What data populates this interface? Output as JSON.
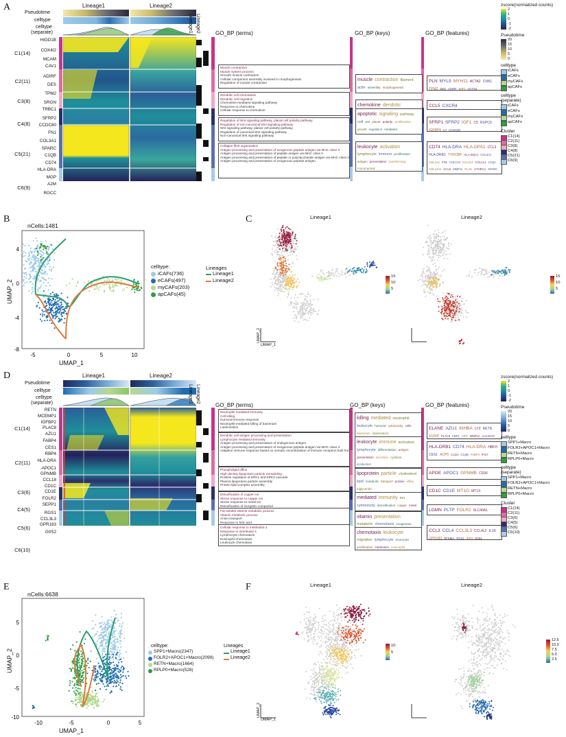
{
  "panels": {
    "A": "A",
    "B": "B",
    "C": "C",
    "D": "D",
    "E": "E",
    "F": "F"
  },
  "colors": {
    "yellow": "#f5e71e",
    "teal": "#1f8f9a",
    "navy": "#25205a",
    "c1": "#c8338a",
    "c2": "#e06aa0",
    "c3": "#f4a6c6",
    "c4": "#2b2f6b",
    "c5": "#5b6fb0",
    "c6": "#a8cbe6",
    "lin1": "#2a9d70",
    "lin2": "#e07a3a",
    "icaf": "#9ecae8",
    "ecaf": "#1f6eb0",
    "mycaf": "#b5d990",
    "apcaf": "#2e9e40"
  },
  "A": {
    "row_labels": [
      "Pseudotime",
      "celltype",
      "celltype",
      "(separate)"
    ],
    "lineage1": "Lineage1",
    "lineage2": "Lineage2",
    "vlin1": "Lineage1",
    "vlin2": "Lineage2",
    "genes": [
      "HIGD1B",
      "COX4I2",
      "MCAM",
      "CAV1",
      "ADIRF",
      "DES",
      "TPM2",
      "SRGN",
      "TRBC1",
      "SFRP2",
      "CCDC80",
      "FN1",
      "COL3A1",
      "SPARC",
      "C1QB",
      "CD74",
      "HLA-DRA",
      "MGP",
      "A2M",
      "RGCC"
    ],
    "clusters": [
      "C1(14)",
      "C2(11)",
      "C3(8)",
      "C4(8)",
      "C5(21)",
      "C6(9)"
    ],
    "hdr_terms": "GO_BP (terms)",
    "hdr_keys": "GO_BP (keys)",
    "hdr_feat": "GO_BP (features)",
    "terms": [
      [
        "Muscle contraction",
        "Muscle system process",
        "Smooth muscle contraction",
        "Cellular component assembly involved in morphogenesis",
        "Regulation of muscle contraction"
      ],
      [
        "Dendritic cell chemotaxis",
        "Dendritic cell migration",
        "Chemokine-mediated signaling pathway",
        "Response to chemokine",
        "Cellular response to chemokine"
      ],
      [
        "Regulation of Wnt signaling pathway, planar cell polarity pathway",
        "Regulation of non-canonical Wnt signaling pathway",
        "Wnt signaling pathway, planar cell polarity pathway",
        "Regulation of canonical Wnt signaling pathway",
        "Non-canonical Wnt signaling pathway"
      ],
      [
        "Collagen fibril organization",
        "Antigen processing and presentation of exogenous peptide antigen via MHC class II",
        "Antigen processing and presentation of peptide antigen via MHC class II",
        "Antigen processing and presentation of peptide or polysaccharide antigen via MHC class II",
        "Antigen processing and presentation of exogenous peptide antigen"
      ]
    ],
    "keys": [
      [
        "muscle",
        "contraction",
        "filament",
        "actin",
        "assembly",
        "morphogenesis",
        "differentiation"
      ],
      [
        "chemokine",
        "dendritic"
      ],
      [
        "apoptotic",
        "signaling",
        "pathway",
        "cell",
        "wnt",
        "planar",
        "polarity",
        "proliferation",
        "growth",
        "regulation",
        "mediated"
      ],
      [
        "leukocyte",
        "activation",
        "lymphocyte",
        "immune",
        "proliferation",
        "antigen",
        "presentation",
        "transforming",
        "mononuclear"
      ]
    ],
    "features": [
      [
        "PLN",
        "MYL9",
        "MYH11",
        "ACTA2",
        "CNN1",
        "TPM2",
        "DES",
        "ADIRF",
        "WIF1",
        "ACTG2"
      ],
      [
        "CCL5",
        "CXCR4"
      ],
      [
        "SFRP1",
        "SFRP2",
        "IGF1",
        "C5",
        "RSPO3",
        "IGFBP4",
        "C7",
        "CCDC80"
      ],
      [
        "CD74",
        "HLA-DRA",
        "HLA-DPA1",
        "CCL3",
        "HLA-DRB1",
        "TYROBP",
        "HLA-DQA1",
        "COL3A1",
        "COL1A1",
        "FN1",
        "COL1A2",
        "CCL4L2",
        "COL1A1",
        "C1QA",
        "COL12A1",
        "CCL5",
        "MMP11",
        "PLAU",
        "CTHRC1",
        "SPARC"
      ]
    ],
    "legend": {
      "zscore": "zscore(normalized counts)",
      "zticks": [
        "2",
        "1",
        "0",
        "-1",
        "-2"
      ],
      "pseudo": "Pseudotime",
      "pticks": [
        "20",
        "15",
        "10",
        "5",
        "0"
      ],
      "celltype": "celltype",
      "cell_items": [
        "iCAFs",
        "eCAFs",
        "myCAFs",
        "apCAFs"
      ],
      "sep": "celltype",
      "sep2": "(separate)",
      "sep_items": [
        "iCAFs",
        "eCAFs",
        "myCAFs",
        "apCAFs"
      ],
      "cluster": "Cluster",
      "clus_items": [
        "C1(14)",
        "C2(11)",
        "C3(8)",
        "C4(8)",
        "C5(21)",
        "C6(9)"
      ]
    }
  },
  "B": {
    "ncells": "nCells:1481",
    "xlabel": "UMAP_1",
    "ylabel": "UMAP_2",
    "xticks": [
      "-5",
      "0",
      "5",
      "10"
    ],
    "yticks": [
      "4",
      "0",
      "-4",
      "-8"
    ],
    "legend_title": "celltype:",
    "items": [
      "iCAFs(736)",
      "eCAFs(497)",
      "myCAFs(203)",
      "apCAFs(45)"
    ],
    "lin_title": "Lineages",
    "lins": [
      "Lineage1",
      "Lineage2"
    ]
  },
  "C": {
    "l1": "Lineage1",
    "l2": "Lineage2",
    "ticks1": [
      "15",
      "10",
      "5"
    ],
    "ticks2": [
      "15",
      "10",
      "5"
    ],
    "x": "UMAP_1",
    "y": "UMAP_2"
  },
  "D": {
    "row_labels": [
      "Pseudotime",
      "celltype",
      "celltype",
      "(separate)"
    ],
    "lineage1": "Lineage1",
    "lineage2": "Lineage2",
    "genes": [
      "RETN",
      "MCEMP1",
      "IGFBP2",
      "PLAC8",
      "AZU1",
      "FABP4",
      "CES1",
      "RBP4",
      "HLA-DRA",
      "APOC1",
      "GPNMB",
      "CCL18",
      "CD1C",
      "CD1E",
      "FOLR2",
      "SEPP1",
      "RGS1",
      "CCL3L3",
      "GPR183",
      "G0S2"
    ],
    "clusters": [
      "C1(14)",
      "C2(11)",
      "C3(6)",
      "C4(5)",
      "C5(6)",
      "C6(10)"
    ],
    "hdr_terms": "GO_BP (terms)",
    "hdr_keys": "GO_BP (keys)",
    "hdr_feat": "GO_BP (features)",
    "terms": [
      [
        "Neutrophil mediated immunity",
        "Cell killing",
        "Humoral immune response",
        "Neutrophil-mediated killing of bacterium",
        "Luteinization"
      ],
      [
        "Dendritic cell antigen processing and presentation",
        "Lymphocyte mediated immunity",
        "Antigen processing and presentation of endogenous antigen",
        "Antigen processing and presentation of exogenous peptide antigen via MHC class II",
        "Adaptive immune response based on somatic recombination of immune receptors built from immunoglobulin superfamily domains"
      ],
      [
        "Phospholipid efflux",
        "High-density lipoprotein particle remodeling",
        "Positive regulation of ERK1 and ERK2 cascade",
        "Plasma lipoprotein particle assembly",
        "Protein-lipid complex assembly"
      ],
      [
        "Detoxification of copper ion",
        "Stress response to copper ion",
        "Stress response to metal ion",
        "Detoxification of inorganic compound",
        "Cellular response to zinc ion"
      ],
      [
        "Fat-soluble vitamin metabolic process",
        "Vitamin metabolic process",
        "Anion transport",
        "Response to folic acid",
        "Negative regulation of multicellular organism growth"
      ],
      [
        "Cellular response to interleukin-1",
        "Response to interleukin-1",
        "Lymphocyte chemotaxis",
        "Eosinophil chemotaxis",
        "Leukocyte chemotaxis"
      ]
    ],
    "keys": [
      [
        "killing",
        "mediated",
        "neutrophil",
        "leukocyte",
        "humoral",
        "cytotoxicity",
        "cells",
        "bacterium",
        "luteinization"
      ],
      [
        "leukocyte",
        "immune",
        "activation",
        "lymphocyte",
        "differentiation",
        "antigen",
        "presentation",
        "secretion",
        "cytokine",
        "production"
      ],
      [
        "lipoprotein",
        "particle",
        "cholesterol",
        "lipid",
        "metabolic",
        "transport",
        "protein",
        "efflux",
        "triglyceride"
      ],
      [
        "mediated",
        "immunity",
        "ion",
        "cytotoxicity",
        "detoxification",
        "copper",
        "metal",
        "zinc"
      ],
      [
        "vitamin",
        "presentation",
        "metabolic",
        "chemotaxis",
        "exogenous",
        "antigen",
        "transport",
        "ion",
        "folic",
        "particle"
      ],
      [
        "chemotaxis",
        "leukocyte",
        "migration",
        "lymphocyte",
        "monocyte",
        "proliferation",
        "interleukin",
        "eosinophil"
      ]
    ],
    "features": [
      [
        "ELANE",
        "AZU1",
        "INHBA",
        "LYZ",
        "RETN",
        "S100P",
        "PLAC8",
        "FBP1",
        "CPD",
        "MMP12",
        "ALOX5AP"
      ],
      [
        "HLA-DRB1",
        "CD74",
        "HLA-DRA",
        "HBFH",
        "CES1",
        "ACP5",
        "C1QA",
        "C1QB",
        "FABP4",
        "IFI27",
        "DCHFR"
      ],
      [
        "APOE",
        "APOC1",
        "GPNMB",
        "CD36",
        "PVCAT",
        "FTL"
      ],
      [
        "CD1C",
        "CD1E",
        "MT1G",
        "MT1X"
      ],
      [
        "LGMN",
        "PLTP",
        "FOLR2",
        "SLC40A1",
        "P2AF"
      ],
      [
        "CCL3",
        "CCL4",
        "CCL3L3",
        "CCL4L2",
        "IL1B",
        "GPR183",
        "NFKBIA",
        "RGS1",
        "IER3",
        "G0S2"
      ]
    ],
    "legend": {
      "zscore": "zscore(normalized counts)",
      "zticks": [
        "2",
        "1",
        "0",
        "-1",
        "-2"
      ],
      "pseudo": "Pseudotime",
      "pticks": [
        "20",
        "15",
        "10",
        "5",
        "0"
      ],
      "celltype": "celltype",
      "cell_items": [
        "SPP1+Macro",
        "FOLR2+APOC1+Macro",
        "RETN+Macro",
        "RPLP0+Macro"
      ],
      "sep": "celltype",
      "sep2": "(separate)",
      "sep_items": [
        "SPP1+Macro",
        "FOLR2+APOC1+Macro",
        "RETN+Macro",
        "RPLP0+Macro"
      ],
      "cluster": "Cluster",
      "clus_items": [
        "C1(14)",
        "C2(11)",
        "C3(6)",
        "C4(5)",
        "C5(6)",
        "C6(10)"
      ]
    }
  },
  "E": {
    "ncells": "nCells:6638",
    "xlabel": "UMAP_1",
    "ylabel": "UMAP_2",
    "xticks": [
      "-10",
      "-5",
      "0",
      "5"
    ],
    "yticks": [
      "5",
      "0",
      "-5",
      "-10"
    ],
    "legend_title": "celltype:",
    "items": [
      "SPP1+Macro(2347)",
      "FOLR2+APOC1+Macro(2099)",
      "RETN+Macro(1664)",
      "RPLP0+Macro(528)"
    ],
    "lin_title": "Lineages",
    "lins": [
      "Lineage1",
      "Lineage2"
    ]
  },
  "F": {
    "l1": "Lineage1",
    "l2": "Lineage2",
    "ticks1": [
      "10",
      "5"
    ],
    "ticks2": [
      "12.5",
      "10.0",
      "7.5",
      "5.0",
      "2.5"
    ],
    "x": "UMAP_1",
    "y": "UMAP_2"
  }
}
